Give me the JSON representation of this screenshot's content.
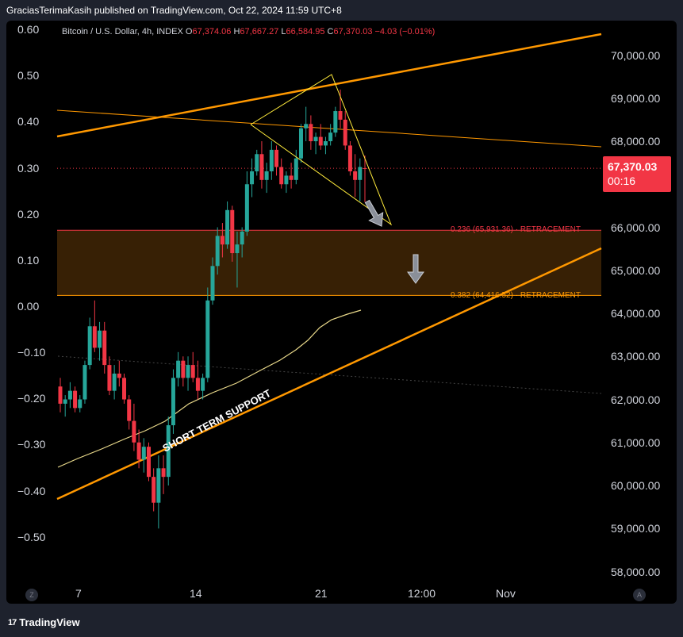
{
  "header": {
    "author": "GraciasTerimaKasih",
    "published_text": "GraciasTerimaKasih published on TradingView.com, Oct 22, 2024 11:59 UTC+8"
  },
  "legend": {
    "symbol": "Bitcoin / U.S. Dollar, 4h, INDEX",
    "open_label": "O",
    "open": "67,374.06",
    "high_label": "H",
    "high": "67,667.27",
    "low_label": "L",
    "low": "66,584.95",
    "close_label": "C",
    "close": "67,370.03",
    "change": "−4.03 (−0.01%)"
  },
  "left_axis": [
    "0.60",
    "0.50",
    "0.40",
    "0.30",
    "0.20",
    "0.10",
    "0.00",
    "−0.10",
    "−0.20",
    "−0.30",
    "−0.40",
    "−0.50"
  ],
  "right_axis": [
    "70,000.00",
    "69,000.00",
    "68,000.00",
    "67,000.00",
    "66,000.00",
    "65,000.00",
    "64,000.00",
    "63,000.00",
    "62,000.00",
    "61,000.00",
    "60,000.00",
    "59,000.00",
    "58,000.00"
  ],
  "x_axis": [
    "7",
    "14",
    "21",
    "12:00",
    "Nov"
  ],
  "price_tag": {
    "price": "67,370.03",
    "countdown": "00:16"
  },
  "fib": {
    "level_236": "0.236 (65,931.36) · RETRACEMENT",
    "level_382": "0.382 (64,416.52) · RETRACEMENT"
  },
  "annotation": "SHORT TERM SUPPORT",
  "axis_buttons": {
    "left": "Z",
    "right": "A"
  },
  "footer": {
    "brand": "TradingView",
    "logo_mark": "17"
  },
  "colors": {
    "background": "#000000",
    "frame": "#1e222d",
    "up": "#26a69a",
    "down": "#f23645",
    "trendline": "#ff9800",
    "wedge": "#ffeb3b",
    "fib_zone": "#3d2406",
    "ma": "#e8d88a"
  },
  "chart_data": {
    "type": "candlestick",
    "timeframe": "4h",
    "price_axis": [
      58000,
      70000
    ],
    "percent_axis": [
      -0.5,
      0.6
    ],
    "candles": [
      [
        62300,
        62500,
        61700,
        61900
      ],
      [
        61900,
        62100,
        61600,
        62000
      ],
      [
        62000,
        62400,
        61800,
        62200
      ],
      [
        62200,
        62300,
        61700,
        61800
      ],
      [
        61800,
        62100,
        61700,
        62000
      ],
      [
        62000,
        62900,
        61900,
        62800
      ],
      [
        62800,
        63900,
        62700,
        63700
      ],
      [
        63700,
        64300,
        63100,
        63200
      ],
      [
        63200,
        63800,
        62900,
        63600
      ],
      [
        63600,
        63800,
        62600,
        62800
      ],
      [
        62800,
        63000,
        62100,
        62200
      ],
      [
        62200,
        62800,
        62000,
        62600
      ],
      [
        62600,
        62900,
        62300,
        62500
      ],
      [
        62500,
        62600,
        61900,
        62000
      ],
      [
        62000,
        62100,
        61300,
        61500
      ],
      [
        61500,
        61900,
        60800,
        61000
      ],
      [
        61000,
        61300,
        60400,
        60600
      ],
      [
        60600,
        61100,
        60300,
        60900
      ],
      [
        60900,
        61000,
        60100,
        60200
      ],
      [
        60200,
        60400,
        59400,
        59600
      ],
      [
        59600,
        60700,
        59000,
        60400
      ],
      [
        60400,
        60700,
        59800,
        60200
      ],
      [
        60200,
        61600,
        60000,
        61400
      ],
      [
        61400,
        62700,
        61200,
        62500
      ],
      [
        62500,
        63100,
        62300,
        62900
      ],
      [
        62900,
        63000,
        62300,
        62500
      ],
      [
        62500,
        63000,
        62200,
        62800
      ],
      [
        62800,
        63100,
        62400,
        62500
      ],
      [
        62500,
        62900,
        62000,
        62200
      ],
      [
        62200,
        62600,
        62000,
        62500
      ],
      [
        62500,
        64600,
        62400,
        64300
      ],
      [
        64300,
        65300,
        64200,
        65100
      ],
      [
        65100,
        66000,
        64900,
        65800
      ],
      [
        65800,
        66100,
        65300,
        65600
      ],
      [
        65600,
        66600,
        65500,
        66400
      ],
      [
        66400,
        66500,
        65200,
        65400
      ],
      [
        65400,
        65900,
        64600,
        65600
      ],
      [
        65600,
        66000,
        65300,
        65900
      ],
      [
        65900,
        67300,
        65800,
        67000
      ],
      [
        67000,
        67600,
        66700,
        67300
      ],
      [
        67300,
        67800,
        67200,
        67700
      ],
      [
        67700,
        68000,
        66900,
        67100
      ],
      [
        67100,
        67500,
        66800,
        67300
      ],
      [
        67300,
        68000,
        67100,
        67800
      ],
      [
        67800,
        67900,
        67200,
        67400
      ],
      [
        67400,
        67600,
        66900,
        67000
      ],
      [
        67000,
        67300,
        66800,
        67200
      ],
      [
        67200,
        67500,
        66900,
        67100
      ],
      [
        67100,
        67800,
        67000,
        67600
      ],
      [
        67600,
        68400,
        67500,
        68300
      ],
      [
        68300,
        68800,
        68000,
        68400
      ],
      [
        68400,
        68600,
        67800,
        68000
      ],
      [
        68000,
        68200,
        67700,
        68100
      ],
      [
        68100,
        68400,
        67800,
        67900
      ],
      [
        67900,
        68100,
        67700,
        68000
      ],
      [
        68000,
        68400,
        67900,
        68200
      ],
      [
        68200,
        68800,
        68100,
        68700
      ],
      [
        68700,
        69200,
        68300,
        68500
      ],
      [
        68500,
        68700,
        67800,
        67900
      ],
      [
        67900,
        68000,
        67200,
        67300
      ],
      [
        67300,
        67700,
        66700,
        67100
      ],
      [
        67100,
        67600,
        66600,
        67400
      ],
      [
        67374.06,
        67667.27,
        66584.95,
        67370.03
      ]
    ],
    "fib_retracement": [
      {
        "level": 0.236,
        "price": 65931.36
      },
      {
        "level": 0.382,
        "price": 64416.52
      }
    ],
    "annotations": [
      "SHORT TERM SUPPORT"
    ]
  }
}
